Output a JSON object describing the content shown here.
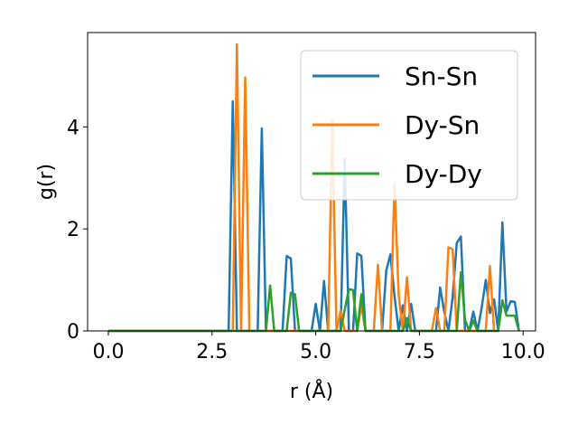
{
  "chart_data": {
    "type": "line",
    "title": "",
    "xlabel": "r (Å)",
    "ylabel": "g(r)",
    "xlim": [
      -0.5,
      10.3
    ],
    "ylim": [
      0,
      5.85
    ],
    "xticks": [
      0.0,
      2.5,
      5.0,
      7.5,
      10.0
    ],
    "xtick_labels": [
      "0.0",
      "2.5",
      "5.0",
      "7.5",
      "10.0"
    ],
    "yticks": [
      0,
      2,
      4
    ],
    "ytick_labels": [
      "0",
      "2",
      "4"
    ],
    "grid": false,
    "legend_position": "upper right",
    "series": [
      {
        "name": "Sn-Sn",
        "color": "#1f77b4",
        "x": [
          0.0,
          2.9,
          3.0,
          3.1,
          3.2,
          3.6,
          3.7,
          3.8,
          4.1,
          4.2,
          4.3,
          4.4,
          4.5,
          4.9,
          5.0,
          5.1,
          5.2,
          5.3,
          5.6,
          5.7,
          5.8,
          5.9,
          6.0,
          6.1,
          6.2,
          6.5,
          6.6,
          6.7,
          6.8,
          6.9,
          7.0,
          7.1,
          7.2,
          7.3,
          7.4,
          7.8,
          7.9,
          8.0,
          8.1,
          8.2,
          8.3,
          8.4,
          8.5,
          8.6,
          8.7,
          8.8,
          8.9,
          9.0,
          9.1,
          9.2,
          9.3,
          9.4,
          9.5,
          9.6,
          9.7,
          9.8,
          9.9
        ],
        "y": [
          0,
          0,
          4.5,
          0,
          0,
          0,
          3.97,
          0,
          0,
          0,
          1.47,
          1.42,
          0,
          0,
          0.53,
          0,
          0.98,
          0,
          0,
          3.37,
          0,
          0,
          1.52,
          1.47,
          0,
          0,
          0,
          1.18,
          1.5,
          0.68,
          0,
          0.5,
          0,
          0.53,
          0,
          0,
          0,
          0.85,
          0.37,
          0,
          0.65,
          1.72,
          1.85,
          0,
          0,
          0.38,
          0,
          0.45,
          1.0,
          0.35,
          0.62,
          0,
          2.13,
          0.38,
          0.58,
          0.57,
          0
        ]
      },
      {
        "name": "Dy-Sn",
        "color": "#ff7f0e",
        "x": [
          0.0,
          3.0,
          3.1,
          3.2,
          3.3,
          3.4,
          5.2,
          5.3,
          5.4,
          5.5,
          5.6,
          5.7,
          5.8,
          5.9,
          6.0,
          6.1,
          6.2,
          6.3,
          6.4,
          6.5,
          6.6,
          6.7,
          6.8,
          6.9,
          7.0,
          7.1,
          7.2,
          7.3,
          7.8,
          7.9,
          8.0,
          8.1,
          8.2,
          8.3,
          8.4,
          8.5,
          8.6,
          8.7,
          8.8,
          8.9,
          9.0,
          9.1,
          9.2,
          9.3,
          9.4
        ],
        "y": [
          0,
          0,
          5.62,
          0,
          4.97,
          0,
          0,
          0,
          4.1,
          0,
          0.4,
          0,
          0,
          0,
          0,
          0.5,
          0,
          0,
          0,
          1.3,
          0,
          0,
          0,
          2.9,
          0.7,
          0,
          1.05,
          0,
          0,
          0.45,
          0,
          0,
          1.64,
          1.6,
          0,
          0,
          0,
          0,
          0,
          0,
          0,
          0,
          1.27,
          0,
          0
        ]
      },
      {
        "name": "Dy-Dy",
        "color": "#2ca02c",
        "x": [
          0.0,
          3.7,
          3.8,
          3.9,
          4.0,
          4.3,
          4.4,
          4.5,
          4.6,
          5.5,
          5.6,
          5.7,
          5.8,
          5.9,
          6.0,
          6.1,
          6.2,
          7.0,
          7.1,
          7.2,
          7.3,
          8.3,
          8.4,
          8.5,
          8.6,
          8.7,
          8.8,
          8.9,
          9.0,
          9.1,
          9.2,
          9.3,
          9.4,
          9.5,
          9.6,
          9.7,
          9.8,
          9.9
        ],
        "y": [
          0,
          0,
          0,
          0.89,
          0,
          0,
          0.75,
          0.72,
          0,
          0,
          0,
          0.42,
          0.82,
          0.8,
          0,
          0.72,
          0,
          0,
          0,
          0.25,
          0,
          0,
          0,
          1.15,
          0.22,
          0,
          0.2,
          0,
          0,
          0,
          0,
          0,
          0,
          0.6,
          0.3,
          0.3,
          0.3,
          0
        ]
      }
    ]
  }
}
